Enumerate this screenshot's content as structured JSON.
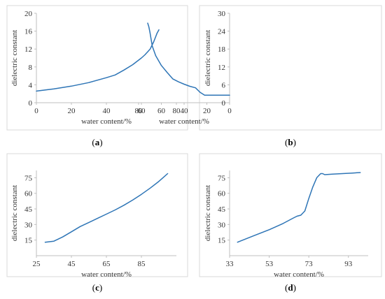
{
  "figure": {
    "line_color": "#2e75b6"
  },
  "chart_data": [
    {
      "id": "a",
      "type": "line",
      "panel_label": "a",
      "xlabel": "water content/%",
      "ylabel": "dielectric constant",
      "xlim": [
        0,
        80
      ],
      "ylim": [
        0,
        20
      ],
      "xticks": [
        0,
        20,
        40,
        60,
        80
      ],
      "yticks": [
        0,
        4,
        8,
        12,
        16,
        20
      ],
      "grid": false,
      "series": [
        {
          "x": [
            0,
            10,
            20,
            30,
            40,
            45,
            50,
            55,
            60,
            62,
            65,
            67,
            69,
            70
          ],
          "y": [
            2.6,
            3.1,
            3.7,
            4.5,
            5.6,
            6.2,
            7.3,
            8.5,
            10.0,
            10.7,
            12.0,
            13.6,
            15.6,
            16.3
          ]
        }
      ]
    },
    {
      "id": "b",
      "type": "line",
      "panel_label": "b",
      "xlabel": "water content/%",
      "ylabel": "dielectric constant",
      "xlim": [
        0,
        80
      ],
      "ylim": [
        0,
        30
      ],
      "xticks": [
        0,
        20,
        40,
        60,
        80
      ],
      "yticks": [
        0,
        6,
        12,
        18,
        24,
        30
      ],
      "grid": false,
      "series": [
        {
          "x": [
            0,
            10,
            18,
            22,
            26,
            30,
            35,
            40,
            45,
            50,
            55,
            60,
            65,
            68,
            70,
            71,
            72
          ],
          "y": [
            2.5,
            2.5,
            2.5,
            2.5,
            3.5,
            5.0,
            5.5,
            6.2,
            7.0,
            8.0,
            10.2,
            12.5,
            15.8,
            19.0,
            23.5,
            25.5,
            26.7
          ]
        }
      ]
    },
    {
      "id": "c",
      "type": "line",
      "panel_label": "c",
      "xlabel": "water content/%",
      "ylabel": "dielectric constant",
      "xlim": [
        25,
        105
      ],
      "ylim": [
        0,
        82
      ],
      "xticks": [
        25,
        45,
        65,
        85
      ],
      "yticks": [
        15,
        30,
        45,
        60,
        75
      ],
      "grid": false,
      "series": [
        {
          "x": [
            30,
            35,
            40,
            45,
            50,
            55,
            60,
            65,
            70,
            75,
            80,
            85,
            90,
            95,
            100
          ],
          "y": [
            13,
            14,
            18,
            23,
            28,
            32,
            36,
            40,
            44,
            48.5,
            53.5,
            59,
            65,
            71.5,
            79
          ]
        }
      ]
    },
    {
      "id": "d",
      "type": "line",
      "panel_label": "d",
      "xlabel": "water content/%",
      "ylabel": "dielectric constant",
      "xlim": [
        33,
        103
      ],
      "ylim": [
        0,
        82
      ],
      "xticks": [
        33,
        53,
        73,
        93
      ],
      "yticks": [
        15,
        30,
        45,
        60,
        75
      ],
      "grid": false,
      "series": [
        {
          "x": [
            37,
            45,
            53,
            60,
            65,
            67,
            69,
            71,
            73,
            75,
            77,
            79,
            80,
            81,
            85,
            90,
            95,
            99
          ],
          "y": [
            13,
            19,
            25,
            31,
            36,
            38,
            39,
            43,
            55,
            66,
            75,
            79,
            79,
            78,
            78.5,
            79,
            79.5,
            80
          ]
        }
      ]
    }
  ]
}
